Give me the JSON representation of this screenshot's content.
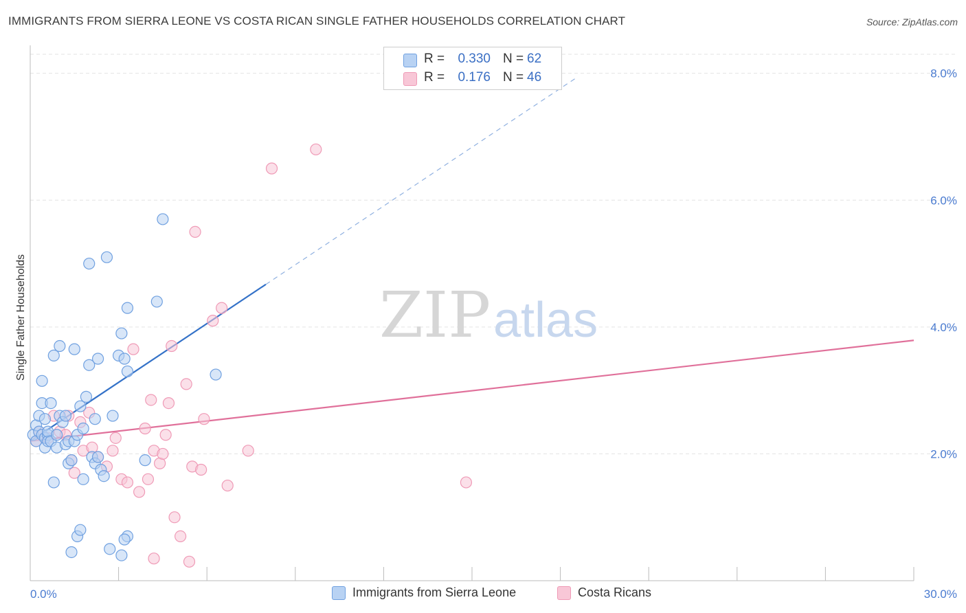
{
  "header": {
    "title": "IMMIGRANTS FROM SIERRA LEONE VS COSTA RICAN SINGLE FATHER HOUSEHOLDS CORRELATION CHART",
    "source": "Source: ZipAtlas.com"
  },
  "watermark": {
    "zip": "ZIP",
    "atlas": "atlas"
  },
  "legend": [
    {
      "r_label": "R =",
      "r_value": "0.330",
      "n_label": "N =",
      "n_value": "62",
      "color": "#a9c8f0"
    },
    {
      "r_label": "R =",
      "r_value": "0.176",
      "n_label": "N =",
      "n_value": "46",
      "color": "#f5b7cb"
    }
  ],
  "bottom_legend": [
    {
      "label": "Immigrants from Sierra Leone",
      "color": "#a9c8f0"
    },
    {
      "label": "Costa Ricans",
      "color": "#f5b7cb"
    }
  ],
  "chart_data": {
    "type": "scatter",
    "title": "IMMIGRANTS FROM SIERRA LEONE VS COSTA RICAN SINGLE FATHER HOUSEHOLDS CORRELATION CHART",
    "xlabel": "",
    "ylabel": "Single Father Households",
    "xlim": [
      0,
      30
    ],
    "ylim": [
      0,
      8.3
    ],
    "x_tick_labels": [
      "0.0%",
      "30.0%"
    ],
    "y_ticks": [
      2,
      4,
      6,
      8
    ],
    "y_tick_labels": [
      "2.0%",
      "4.0%",
      "6.0%",
      "8.0%"
    ],
    "grid": true,
    "series": [
      {
        "name": "Immigrants from Sierra Leone",
        "color": "#6fa0e0",
        "fill": "#b8d2f3",
        "line_color": "#3472c8",
        "trend": {
          "x_solid": [
            0,
            8
          ],
          "x_dashed": [
            8,
            18.5
          ],
          "y_at_0": 2.2,
          "slope": 0.309
        },
        "points": [
          [
            0.1,
            2.3
          ],
          [
            0.2,
            2.45
          ],
          [
            0.2,
            2.2
          ],
          [
            0.3,
            2.35
          ],
          [
            0.3,
            2.6
          ],
          [
            0.4,
            2.8
          ],
          [
            0.4,
            2.3
          ],
          [
            0.4,
            3.15
          ],
          [
            0.5,
            2.1
          ],
          [
            0.5,
            2.55
          ],
          [
            0.5,
            2.25
          ],
          [
            0.6,
            2.3
          ],
          [
            0.6,
            2.2
          ],
          [
            0.6,
            2.35
          ],
          [
            0.7,
            2.8
          ],
          [
            0.7,
            2.2
          ],
          [
            0.8,
            1.55
          ],
          [
            0.8,
            3.55
          ],
          [
            0.9,
            2.1
          ],
          [
            0.9,
            2.3
          ],
          [
            1.0,
            2.6
          ],
          [
            1.0,
            3.7
          ],
          [
            1.1,
            2.5
          ],
          [
            1.2,
            2.15
          ],
          [
            1.2,
            2.6
          ],
          [
            1.3,
            2.2
          ],
          [
            1.3,
            1.85
          ],
          [
            1.4,
            1.9
          ],
          [
            1.4,
            0.45
          ],
          [
            1.5,
            2.2
          ],
          [
            1.5,
            3.65
          ],
          [
            1.6,
            2.3
          ],
          [
            1.6,
            0.7
          ],
          [
            1.7,
            2.75
          ],
          [
            1.7,
            0.8
          ],
          [
            1.8,
            1.6
          ],
          [
            1.8,
            2.4
          ],
          [
            1.9,
            2.9
          ],
          [
            2.0,
            5.0
          ],
          [
            2.1,
            1.95
          ],
          [
            2.2,
            1.85
          ],
          [
            2.2,
            2.55
          ],
          [
            2.3,
            3.5
          ],
          [
            2.3,
            1.95
          ],
          [
            2.4,
            1.75
          ],
          [
            2.5,
            1.65
          ],
          [
            2.6,
            5.1
          ],
          [
            2.7,
            0.5
          ],
          [
            2.8,
            2.6
          ],
          [
            3.0,
            3.55
          ],
          [
            3.1,
            3.9
          ],
          [
            3.2,
            3.5
          ],
          [
            3.3,
            4.3
          ],
          [
            3.3,
            3.3
          ],
          [
            3.3,
            0.7
          ],
          [
            3.2,
            0.65
          ],
          [
            3.1,
            0.4
          ],
          [
            3.9,
            1.9
          ],
          [
            4.3,
            4.4
          ],
          [
            4.5,
            5.7
          ],
          [
            6.3,
            3.25
          ],
          [
            2.0,
            3.4
          ]
        ]
      },
      {
        "name": "Costa Ricans",
        "color": "#ef9ab6",
        "fill": "#f8c7d7",
        "line_color": "#e0709a",
        "trend": {
          "x_solid": [
            0,
            30
          ],
          "y_at_0": 2.2,
          "slope": 0.053
        },
        "points": [
          [
            0.2,
            2.2
          ],
          [
            0.3,
            2.35
          ],
          [
            0.6,
            2.25
          ],
          [
            0.8,
            2.6
          ],
          [
            1.0,
            2.35
          ],
          [
            1.2,
            2.3
          ],
          [
            1.3,
            2.6
          ],
          [
            1.4,
            1.9
          ],
          [
            1.5,
            1.7
          ],
          [
            1.7,
            2.5
          ],
          [
            1.8,
            2.05
          ],
          [
            2.0,
            2.65
          ],
          [
            2.1,
            2.1
          ],
          [
            2.3,
            1.95
          ],
          [
            2.6,
            1.8
          ],
          [
            2.8,
            2.05
          ],
          [
            2.9,
            2.25
          ],
          [
            3.1,
            1.6
          ],
          [
            3.3,
            1.55
          ],
          [
            3.5,
            3.65
          ],
          [
            3.7,
            1.4
          ],
          [
            3.9,
            2.4
          ],
          [
            4.0,
            1.6
          ],
          [
            4.1,
            2.85
          ],
          [
            4.2,
            0.35
          ],
          [
            4.2,
            2.05
          ],
          [
            4.4,
            1.85
          ],
          [
            4.5,
            2.0
          ],
          [
            4.6,
            2.3
          ],
          [
            4.7,
            2.8
          ],
          [
            4.8,
            3.7
          ],
          [
            4.9,
            1.0
          ],
          [
            5.1,
            0.7
          ],
          [
            5.3,
            3.1
          ],
          [
            5.4,
            0.3
          ],
          [
            5.5,
            1.8
          ],
          [
            5.6,
            5.5
          ],
          [
            5.8,
            1.75
          ],
          [
            5.9,
            2.55
          ],
          [
            6.2,
            4.1
          ],
          [
            6.5,
            4.3
          ],
          [
            6.7,
            1.5
          ],
          [
            7.4,
            2.05
          ],
          [
            8.2,
            6.5
          ],
          [
            9.7,
            6.8
          ],
          [
            14.8,
            1.55
          ]
        ]
      }
    ]
  }
}
